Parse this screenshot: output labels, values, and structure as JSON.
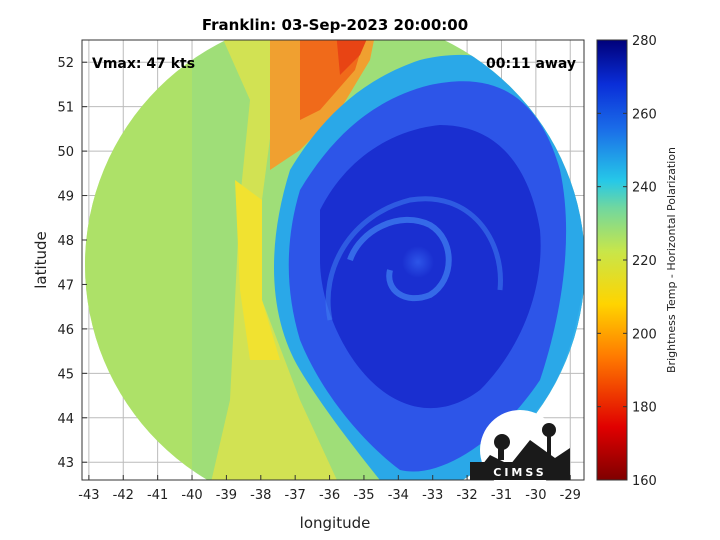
{
  "title": "Franklin: 03-Sep-2023 20:00:00",
  "vmax_label": "Vmax: 47 kts",
  "time_label": "00:11 away",
  "xaxis": {
    "label": "longitude",
    "ticks": [
      "-43",
      "-42",
      "-41",
      "-40",
      "-39",
      "-38",
      "-37",
      "-36",
      "-35",
      "-34",
      "-33",
      "-32",
      "-31",
      "-30",
      "-29"
    ]
  },
  "yaxis": {
    "label": "latitude",
    "ticks": [
      "52",
      "51",
      "50",
      "49",
      "48",
      "47",
      "46",
      "45",
      "44",
      "43"
    ]
  },
  "colorbar": {
    "label": "Brightness Temp - Horizontal Polarization",
    "ticks": [
      "280",
      "260",
      "240",
      "220",
      "200",
      "180",
      "160"
    ],
    "range": [
      160,
      280
    ]
  },
  "logo": {
    "text": "CIMSS"
  },
  "map": {
    "lon_range": [
      -43.2,
      -28.6
    ],
    "lat_range": [
      42.6,
      52.5
    ],
    "grid": true,
    "colors": {
      "cold_deep": "#1a2fd0",
      "cold": "#2d55e8",
      "ring": "#2aa8e8",
      "warm_yellow": "#e7e53a",
      "warm_green": "#a8de72",
      "hot": "#f0651a"
    }
  }
}
